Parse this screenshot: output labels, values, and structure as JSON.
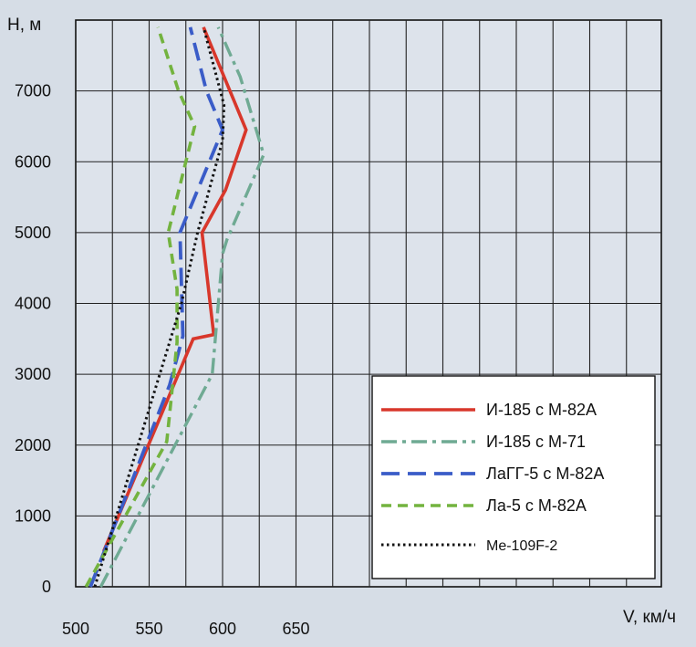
{
  "chart_data": {
    "type": "line",
    "xlabel": "V, км/ч",
    "ylabel": "H, м",
    "xlim": [
      500,
      700
    ],
    "ylim": [
      0,
      8000
    ],
    "x_ticks": [
      500,
      550,
      600,
      650
    ],
    "y_ticks": [
      0,
      1000,
      2000,
      3000,
      4000,
      5000,
      6000,
      7000
    ],
    "grid": true,
    "legend_position": "bottom-right",
    "series": [
      {
        "name": "И-185 с М-82А",
        "color": "#d8372b",
        "dash": "solid",
        "points": [
          [
            519,
            500
          ],
          [
            580,
            3500
          ],
          [
            594,
            3560
          ],
          [
            586,
            5000
          ],
          [
            602,
            5600
          ],
          [
            616,
            6450
          ],
          [
            587,
            7900
          ]
        ]
      },
      {
        "name": "И-185 с М-71",
        "color": "#6faa93",
        "dash": "dashdot",
        "points": [
          [
            517,
            0
          ],
          [
            593,
            3000
          ],
          [
            600,
            4700
          ],
          [
            603,
            4900
          ],
          [
            628,
            6100
          ],
          [
            612,
            7200
          ],
          [
            597,
            7900
          ]
        ]
      },
      {
        "name": "ЛаГГ-5 с М-82А",
        "color": "#3a5cc8",
        "dash": "dash",
        "points": [
          [
            510,
            0
          ],
          [
            564,
            2850
          ],
          [
            573,
            3540
          ],
          [
            571,
            5000
          ],
          [
            600,
            6450
          ],
          [
            589,
            7000
          ],
          [
            578,
            7900
          ]
        ]
      },
      {
        "name": "Ла-5 с М-82А",
        "color": "#73b33f",
        "dash": "shortdash",
        "points": [
          [
            507,
            0
          ],
          [
            562,
            2050
          ],
          [
            569,
            3450
          ],
          [
            569,
            4200
          ],
          [
            563,
            5000
          ],
          [
            581,
            6500
          ],
          [
            570,
            7000
          ],
          [
            556,
            7900
          ]
        ]
      },
      {
        "name": "Me-109F-2",
        "color": "#111111",
        "dash": "dot",
        "points": [
          [
            513,
            0
          ],
          [
            572,
            4000
          ],
          [
            583,
            5000
          ],
          [
            600,
            6300
          ],
          [
            601,
            6800
          ],
          [
            587,
            7900
          ]
        ]
      }
    ]
  }
}
